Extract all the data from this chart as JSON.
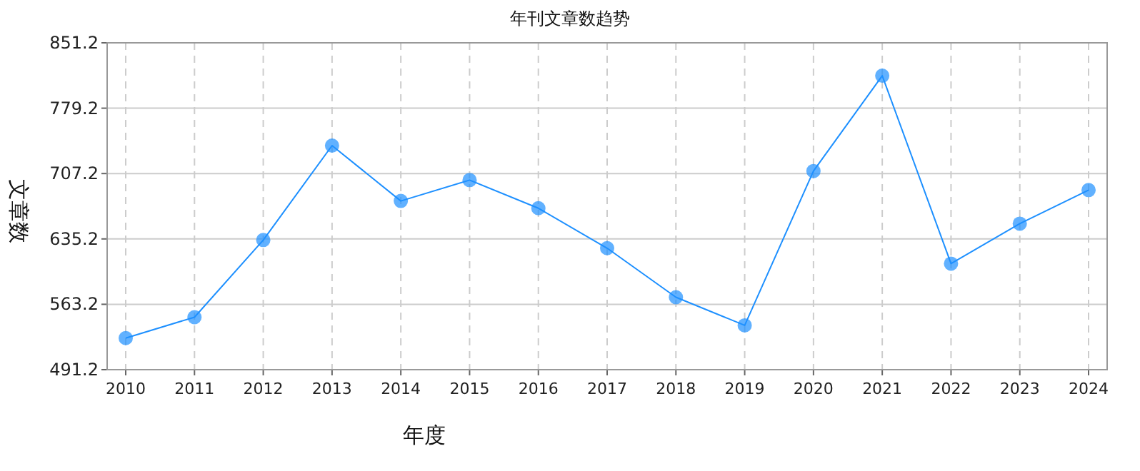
{
  "chart_data": {
    "type": "line",
    "title": "年刊文章数趋势",
    "xlabel": "年度",
    "ylabel": "文章数",
    "categories": [
      "2010",
      "2011",
      "2012",
      "2013",
      "2014",
      "2015",
      "2016",
      "2017",
      "2018",
      "2019",
      "2020",
      "2021",
      "2022",
      "2023",
      "2024"
    ],
    "series": [
      {
        "color": "#1e90ff",
        "values": [
          526,
          549,
          634,
          738,
          677,
          700,
          669,
          625,
          571,
          540,
          710,
          815,
          608,
          652,
          689
        ]
      }
    ],
    "ylim": [
      491.2,
      851.2
    ],
    "yticks": [
      491.2,
      563.2,
      635.2,
      707.2,
      779.2,
      851.2
    ],
    "grid": true,
    "marker": "circle"
  }
}
